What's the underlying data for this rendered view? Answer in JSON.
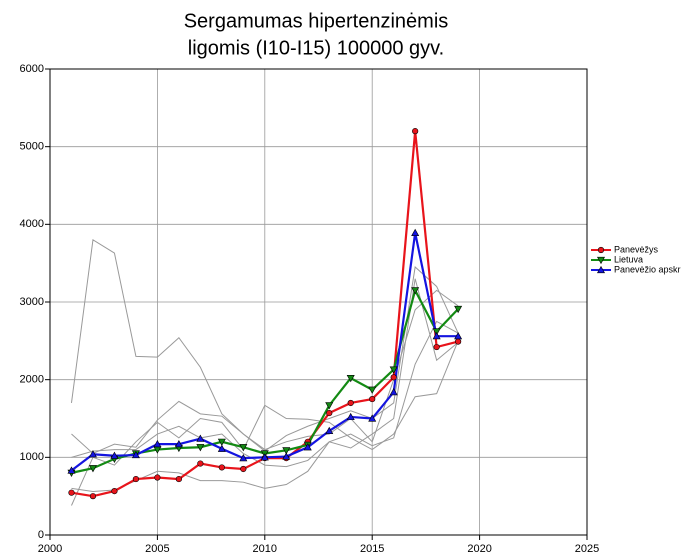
{
  "chart_data": {
    "type": "line",
    "title": [
      "Sergamumas hipertenzinėmis",
      "ligomis (I10-I15) 100000 gyv."
    ],
    "x": [
      2001,
      2002,
      2003,
      2004,
      2005,
      2006,
      2007,
      2008,
      2009,
      2010,
      2011,
      2012,
      2013,
      2014,
      2015,
      2016,
      2017,
      2018,
      2019
    ],
    "xlim": [
      2000,
      2025
    ],
    "xticks": [
      2000,
      2005,
      2010,
      2015,
      2020,
      2025
    ],
    "ylim": [
      0,
      6000
    ],
    "yticks": [
      0,
      1000,
      2000,
      3000,
      4000,
      5000,
      6000
    ],
    "grid": true,
    "legend": "right",
    "series": [
      {
        "color": "#999999",
        "values": [
          1700,
          3800,
          3630,
          2300,
          2290,
          2540,
          2160,
          1560,
          1300,
          1100,
          1200,
          1270,
          1300,
          1500,
          1200,
          2000,
          2900,
          3150,
          2950
        ]
      },
      {
        "color": "#999999",
        "values": [
          1300,
          1050,
          1170,
          1130,
          1480,
          1720,
          1560,
          1530,
          1300,
          1080,
          1280,
          1400,
          1500,
          1600,
          1500,
          1700,
          3450,
          3200,
          2600
        ]
      },
      {
        "color": "#999999",
        "values": [
          380,
          1000,
          900,
          1200,
          1450,
          1250,
          1500,
          1450,
          1100,
          1670,
          1500,
          1490,
          1450,
          1250,
          1100,
          1300,
          1780,
          1820,
          2500
        ]
      },
      {
        "color": "#999999",
        "values": [
          1000,
          1080,
          1100,
          1100,
          1300,
          1400,
          1250,
          1300,
          1050,
          900,
          880,
          960,
          1200,
          1120,
          1300,
          1500,
          3300,
          2250,
          2480
        ]
      },
      {
        "color": "#999999",
        "values": [
          600,
          560,
          580,
          700,
          820,
          800,
          700,
          700,
          680,
          600,
          650,
          820,
          1200,
          1300,
          1150,
          1250,
          2200,
          2750,
          2600
        ]
      },
      {
        "name": "Panevėžys",
        "color": "#e8141b",
        "marker": "circle",
        "values": [
          545,
          500,
          565,
          720,
          740,
          720,
          920,
          870,
          850,
          990,
          990,
          1200,
          1570,
          1700,
          1750,
          2030,
          5200,
          2420,
          2490
        ]
      },
      {
        "name": "Lietuva",
        "color": "#138a13",
        "marker": "triangle-down",
        "values": [
          800,
          860,
          980,
          1050,
          1100,
          1120,
          1130,
          1200,
          1130,
          1050,
          1090,
          1160,
          1670,
          2020,
          1870,
          2130,
          3150,
          2620,
          2910
        ]
      },
      {
        "name": "Panevėžio apskr",
        "color": "#1414e0",
        "marker": "triangle-up",
        "values": [
          830,
          1040,
          1020,
          1030,
          1170,
          1170,
          1240,
          1110,
          990,
          1000,
          1010,
          1130,
          1340,
          1520,
          1500,
          1840,
          3890,
          2560,
          2560
        ]
      }
    ]
  }
}
